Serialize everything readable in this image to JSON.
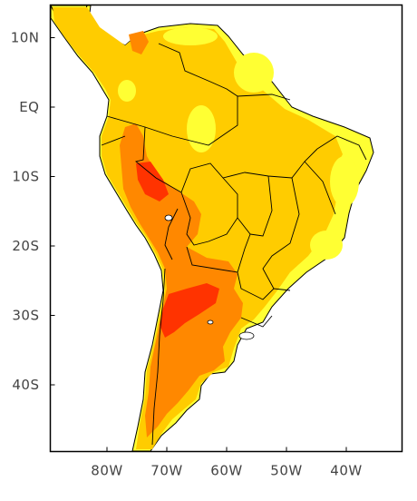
{
  "map": {
    "y_ticks": [
      {
        "label": "10N",
        "lat": 10
      },
      {
        "label": "EQ",
        "lat": 0
      },
      {
        "label": "10S",
        "lat": -10
      },
      {
        "label": "20S",
        "lat": -20
      },
      {
        "label": "30S",
        "lat": -30
      },
      {
        "label": "40S",
        "lat": -40
      }
    ],
    "x_ticks": [
      {
        "label": "80W",
        "lon": -80
      },
      {
        "label": "70W",
        "lon": -70
      },
      {
        "label": "60W",
        "lon": -60
      },
      {
        "label": "50W",
        "lon": -50
      },
      {
        "label": "40W",
        "lon": -40
      }
    ],
    "colors": {
      "ocean": "#ffffff",
      "level_low": "#ffff33",
      "level_mid": "#ffcc00",
      "level_high": "#ff8800",
      "level_max": "#ff3300",
      "border": "#000000"
    }
  }
}
